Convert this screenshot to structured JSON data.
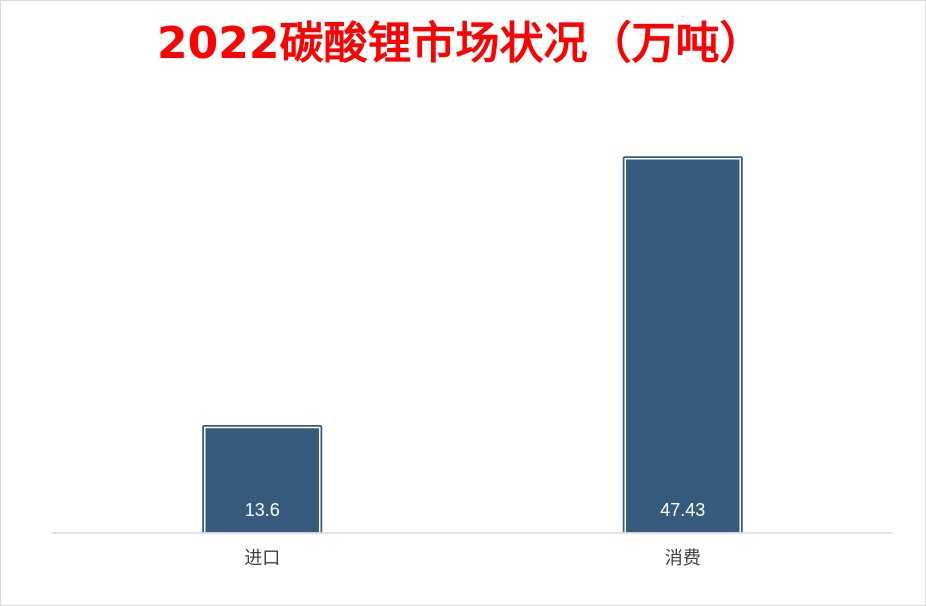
{
  "chart_data": {
    "type": "bar",
    "title": "2022碳酸锂市场状况（万吨）",
    "categories": [
      "进口",
      "消费"
    ],
    "values": [
      13.6,
      47.43
    ],
    "value_labels": [
      "13.6",
      "47.43"
    ],
    "ylim": [
      0,
      53
    ],
    "grid": false,
    "legend": "none",
    "colors": {
      "title": "#ff0000",
      "bar_fill": "#375a7f",
      "bar_outline": "#ffffff",
      "axis": "#d9d9d9",
      "data_label": "#ffffff",
      "tick_label": "#404040"
    }
  }
}
